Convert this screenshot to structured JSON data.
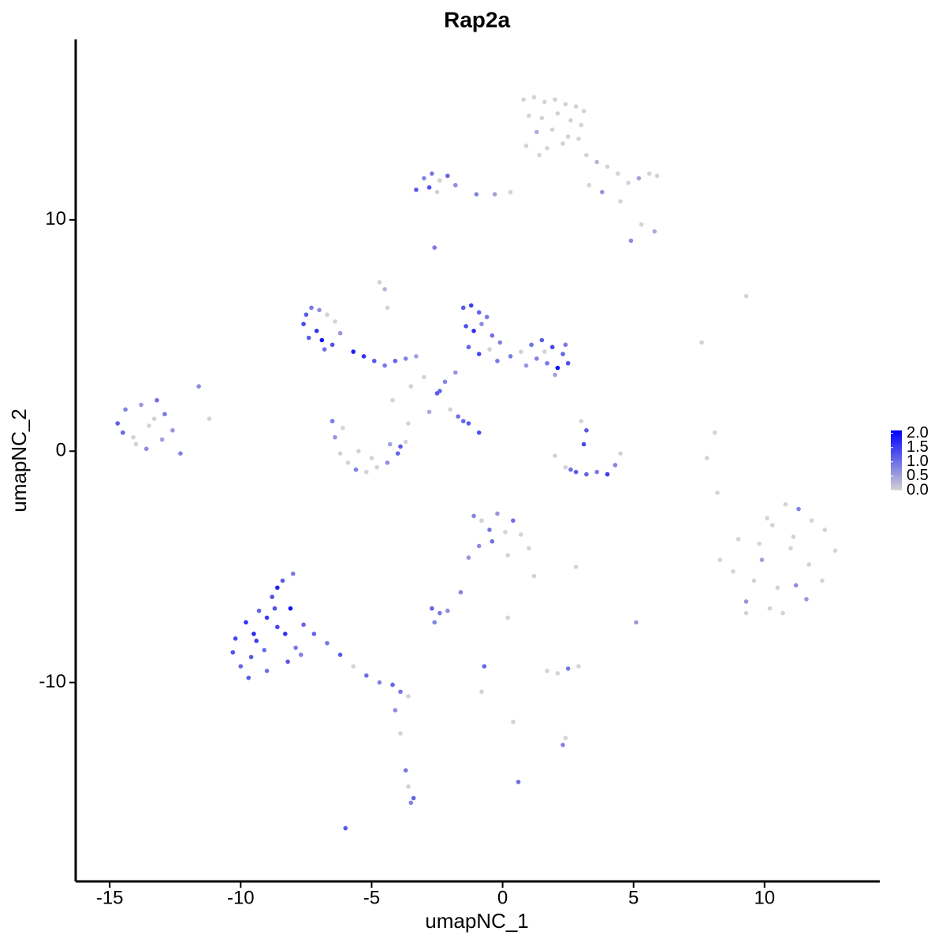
{
  "chart_data": {
    "type": "scatter",
    "title": "Rap2a",
    "xlabel": "umapNC_1",
    "ylabel": "umapNC_2",
    "xlim": [
      -16.3,
      14.4
    ],
    "ylim": [
      -18.6,
      17.8
    ],
    "xticks": [
      -15,
      -10,
      -5,
      0,
      5,
      10
    ],
    "yticks": [
      -10,
      0,
      10
    ],
    "color_low": "#d3d3d3",
    "color_high": "#0000ff",
    "color_lim": [
      0,
      2.1
    ],
    "color_ticks": [
      {
        "value": 0,
        "label": "0.0"
      },
      {
        "value": 0.5,
        "label": "0.5"
      },
      {
        "value": 1,
        "label": "1.0"
      },
      {
        "value": 1.5,
        "label": "1.5"
      },
      {
        "value": 2,
        "label": "2.0"
      }
    ],
    "x": [
      0.8,
      1.2,
      1.6,
      2,
      2.4,
      2.8,
      3.1,
      1,
      1.5,
      2.1,
      2.6,
      3,
      1.3,
      1.9,
      2.5,
      0.9,
      1.7,
      2.3,
      2.9,
      1.4,
      3.2,
      3.6,
      4,
      4.4,
      4.8,
      5.2,
      5.6,
      5.9,
      3.8,
      4.5,
      5.3,
      5.8,
      4.9,
      3.3,
      -3.3,
      -3,
      -2.7,
      -2.4,
      -2.1,
      -2.8,
      -2.5,
      -1.8,
      -1,
      -0.3,
      0.3,
      -2.6,
      -7.6,
      -7.5,
      -7.3,
      -7.1,
      -6.9,
      -7,
      -6.7,
      -6.5,
      -7.4,
      -6.8,
      -6.4,
      -6.2,
      -5.7,
      -5.3,
      -4.9,
      -4.5,
      -4.1,
      -3.7,
      -3.3,
      -4.4,
      -4.7,
      -4.5,
      -1.5,
      -1.2,
      -0.9,
      -0.6,
      -1.4,
      -1.1,
      -0.8,
      -0.4,
      -0.1,
      -1.3,
      -0.9,
      -0.5,
      -0.2,
      -1.8,
      -2.2,
      -2.5,
      0.3,
      0.7,
      1.1,
      1.5,
      1.9,
      2.3,
      2.5,
      1.3,
      1.7,
      2.1,
      0.9,
      1.6,
      2.4,
      2,
      -3,
      -2.4,
      -2,
      -1.7,
      -1.3,
      -0.9,
      -3.5,
      -2.8,
      -4.2,
      -1.5,
      -6.5,
      -6.4,
      -6.2,
      -5.9,
      -5.6,
      -5.2,
      -4.8,
      -4.4,
      -4,
      -3.7,
      -3.6,
      -3.9,
      -5.5,
      -5,
      -4.3,
      -6.1,
      2,
      2.4,
      2.8,
      3.2,
      3.6,
      4,
      4.3,
      4.5,
      3,
      3.2,
      3.1,
      2.6,
      -14.7,
      -14.4,
      -14.1,
      -13.8,
      -13.5,
      -13.2,
      -12.9,
      -13,
      -13.6,
      -14,
      -14.5,
      -13.3,
      -12.6,
      -12.3,
      -11.6,
      -11.2,
      8.3,
      8.8,
      9.3,
      9.8,
      10.3,
      10.8,
      11.3,
      11.8,
      12.3,
      12.7,
      9,
      9.6,
      10.2,
      10.7,
      11.2,
      11.7,
      12.2,
      9.3,
      9.9,
      10.5,
      11,
      11.6,
      10.1,
      11.1,
      7.8,
      8.1,
      8.2,
      9.3,
      7.6,
      -10.3,
      -10,
      -9.7,
      -9.4,
      -9,
      -8.6,
      -8.2,
      -7.9,
      -9.8,
      -9.3,
      -8.8,
      -8.4,
      -8,
      -9.5,
      -9,
      -8.6,
      -8.1,
      -7.6,
      -10.2,
      -9.6,
      -9.1,
      -8.7,
      -8.3,
      -7.7,
      -7.2,
      -6.7,
      -6.2,
      -5.7,
      -5.2,
      -4.7,
      -4.2,
      -3.9,
      -3.6,
      -4.1,
      -3.9,
      -3.7,
      -3.6,
      -3.4,
      -3.5,
      -6,
      -1.1,
      -0.8,
      -0.5,
      -0.2,
      0.1,
      0.4,
      0.7,
      1,
      1.2,
      -0.9,
      -0.4,
      0.2,
      -1.3,
      -1.6,
      -2.7,
      -2.4,
      -2.1,
      -2.6,
      0.2,
      0.4,
      -0.7,
      -0.8,
      1.7,
      2.1,
      2.5,
      2.9,
      2.4,
      2.3,
      0.6,
      2.8,
      5.1
    ],
    "y": [
      15.2,
      15.3,
      15.1,
      15.2,
      15,
      14.9,
      14.7,
      14.5,
      14.4,
      14.6,
      14.3,
      14.1,
      13.8,
      13.9,
      13.6,
      13.2,
      13.1,
      13.3,
      13.5,
      12.8,
      12.8,
      12.5,
      12.3,
      12,
      11.6,
      11.8,
      12,
      11.9,
      11.2,
      10.8,
      9.8,
      9.5,
      9.1,
      11.5,
      11.3,
      11.8,
      12,
      11.7,
      11.9,
      11.4,
      11.2,
      11.5,
      11.1,
      11.1,
      11.2,
      8.8,
      5.5,
      5.9,
      6.2,
      5.2,
      4.8,
      6.1,
      5.9,
      4.6,
      4.9,
      4.4,
      5.6,
      5.1,
      4.3,
      4.1,
      3.9,
      3.7,
      3.9,
      4,
      4.1,
      6.2,
      7.3,
      7,
      6.2,
      6.3,
      6,
      5.8,
      5.4,
      5.2,
      5.5,
      5,
      4.7,
      4.5,
      4.2,
      4.4,
      3.9,
      3.4,
      3,
      2.5,
      4.1,
      4.3,
      4.6,
      4.8,
      4.5,
      4.2,
      3.8,
      4,
      3.8,
      3.6,
      3.7,
      4.3,
      4.6,
      3.3,
      3.2,
      2.6,
      1.8,
      1.5,
      1.2,
      0.8,
      2.8,
      1.7,
      2.2,
      1.3,
      1.3,
      0.6,
      -0.1,
      -0.5,
      -0.8,
      -0.9,
      -0.7,
      -0.5,
      -0.1,
      0.4,
      1.2,
      0.2,
      0,
      -0.3,
      0.3,
      1,
      -0.2,
      -0.7,
      -0.9,
      -1,
      -0.9,
      -1,
      -0.6,
      -0.1,
      1.3,
      0.9,
      0.3,
      -0.8,
      1.2,
      1.8,
      0.6,
      2,
      1.1,
      2.2,
      1.6,
      0.5,
      0.1,
      0.3,
      0.8,
      1.4,
      0.9,
      -0.1,
      2.8,
      1.4,
      -4.7,
      -5.2,
      -6.5,
      -4,
      -3.2,
      -2.3,
      -2.5,
      -3,
      -3.4,
      -4.3,
      -3.8,
      -5.6,
      -6.8,
      -7,
      -5.8,
      -4.9,
      -5.6,
      -7,
      -4.7,
      -5.9,
      -4.2,
      -6.4,
      -2.9,
      -3.7,
      -0.3,
      0.8,
      -1.8,
      6.7,
      4.7,
      -8.7,
      -9.3,
      -9.8,
      -8.2,
      -9.5,
      -7.6,
      -9.1,
      -8.5,
      -7.4,
      -6.9,
      -6.3,
      -5.6,
      -5.3,
      -7.9,
      -7.2,
      -5.9,
      -6.8,
      -7.5,
      -8.1,
      -8.9,
      -8.6,
      -6.8,
      -7.9,
      -8.8,
      -7.9,
      -8.3,
      -8.8,
      -9.3,
      -9.7,
      -10,
      -10.1,
      -10.4,
      -10.6,
      -11.2,
      -12.2,
      -13.8,
      -14.5,
      -15,
      -15.2,
      -16.3,
      -2.8,
      -3,
      -3.4,
      -2.7,
      -3.5,
      -3,
      -3.6,
      -4.2,
      -5.4,
      -4.1,
      -3.9,
      -4.5,
      -4.6,
      -6.1,
      -6.8,
      -7,
      -6.9,
      -7.4,
      -7.2,
      -11.7,
      -9.3,
      -10.4,
      -9.5,
      -9.6,
      -9.4,
      -9.3,
      -12.4,
      -12.7,
      -14.3,
      -5,
      -7.4
    ],
    "values": [
      0,
      0,
      0,
      0,
      0,
      0,
      0,
      0,
      0,
      0,
      0,
      0,
      0.4,
      0,
      0,
      0,
      0,
      0,
      0,
      0,
      0,
      0.3,
      0,
      0,
      0,
      0.5,
      0,
      0,
      0.6,
      0,
      0,
      0.4,
      0.7,
      0,
      1.2,
      0.8,
      0.9,
      0,
      1.1,
      1.3,
      0,
      0.7,
      0.8,
      0.5,
      0,
      0.9,
      1.4,
      1.2,
      0.9,
      1.6,
      1.9,
      0.7,
      0,
      1.3,
      1.2,
      1,
      0,
      0.6,
      1.8,
      1.6,
      1.2,
      0.9,
      1.1,
      0.8,
      0.5,
      0,
      0,
      0.3,
      1.2,
      1.5,
      1.1,
      0.9,
      1.3,
      1.6,
      0.7,
      1,
      0.8,
      1.1,
      1.4,
      0,
      0.9,
      0.6,
      0.8,
      1.2,
      0.9,
      0,
      1,
      1.2,
      1.4,
      1.1,
      1.3,
      0.8,
      0.9,
      2,
      0.6,
      0,
      0.9,
      0.5,
      0,
      1.1,
      0,
      1,
      1.2,
      1.3,
      0,
      0.4,
      0,
      1.1,
      0.9,
      0.6,
      0,
      0,
      0.8,
      0,
      0,
      0.7,
      1.1,
      0,
      0,
      1.2,
      0,
      0,
      0.5,
      0,
      0,
      0,
      1.2,
      1.1,
      0.9,
      1.5,
      0.8,
      0,
      0,
      1.2,
      1.4,
      1,
      1.2,
      0.8,
      0,
      0.6,
      0,
      1,
      0.9,
      0.5,
      0.7,
      0,
      1.1,
      0,
      0.6,
      0.8,
      0.7,
      0,
      0,
      0,
      0.6,
      0,
      0,
      0,
      0.8,
      0,
      0,
      0,
      0,
      0,
      0,
      0,
      0.7,
      0,
      0,
      0,
      0.5,
      0,
      0,
      0.6,
      0,
      0,
      0,
      0,
      0,
      0,
      0,
      1.3,
      1.1,
      1.2,
      1.5,
      1,
      1.4,
      1.2,
      0.9,
      1.6,
      1.1,
      1.3,
      1.2,
      0.9,
      1.7,
      1.5,
      1.8,
      1.9,
      1.1,
      1.4,
      1.2,
      1,
      1.3,
      1.6,
      0.8,
      1.1,
      0.9,
      1.2,
      0,
      1,
      0.8,
      1.1,
      0.9,
      0,
      0.7,
      0,
      0.9,
      0,
      1.1,
      0.8,
      1.2,
      0.8,
      0,
      0.9,
      0.6,
      0,
      1,
      0,
      0,
      0,
      0.7,
      1,
      0,
      0.6,
      0.8,
      1.1,
      0.9,
      0.7,
      0.8,
      0,
      0,
      1.1,
      0,
      0,
      0,
      0.9,
      0,
      0,
      0.8,
      1,
      0,
      0.6
    ]
  }
}
